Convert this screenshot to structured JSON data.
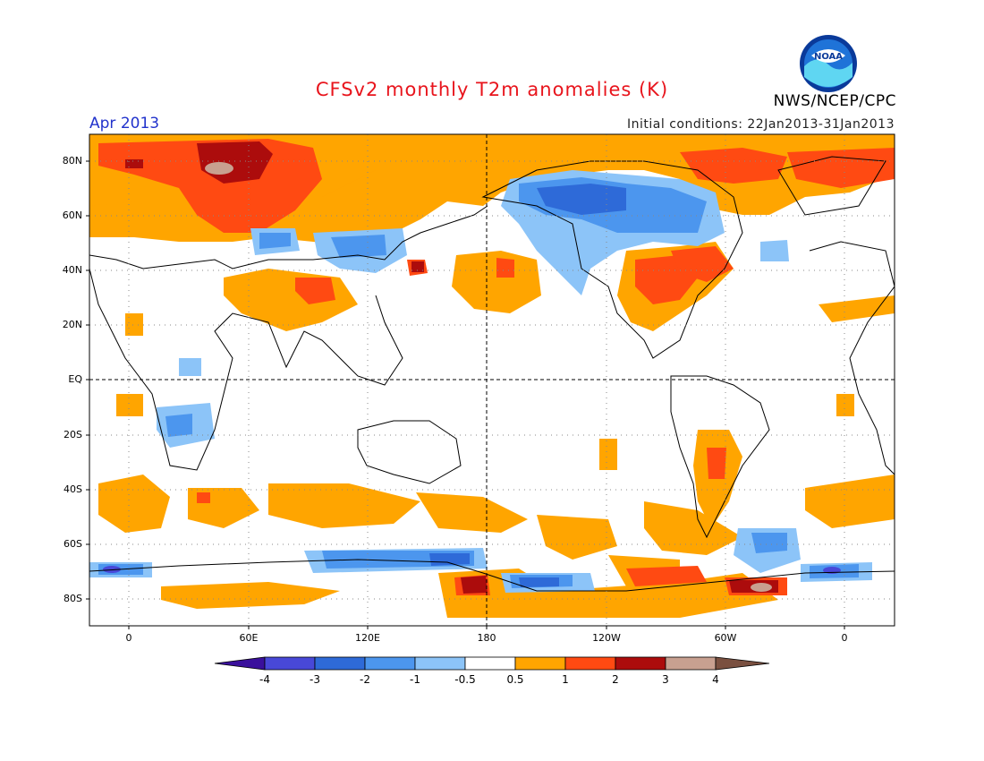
{
  "header": {
    "title": "CFSv2 monthly T2m anomalies (K)",
    "month": "Apr 2013",
    "initial_conditions": "Initial conditions: 22Jan2013-31Jan2013",
    "org": "NWS/NCEP/CPC",
    "logo_text": "NOAA"
  },
  "axes": {
    "lat_labels": [
      "80N",
      "60N",
      "40N",
      "20N",
      "EQ",
      "20S",
      "40S",
      "60S",
      "80S"
    ],
    "lon_labels": [
      "0",
      "60E",
      "120E",
      "180",
      "120W",
      "60W",
      "0"
    ]
  },
  "colorbar": {
    "labels": [
      "-4",
      "-3",
      "-2",
      "-1",
      "-0.5",
      "0.5",
      "1",
      "2",
      "3",
      "4"
    ],
    "colors": [
      "#3a109c",
      "#4848d8",
      "#2e6ad8",
      "#4c96ee",
      "#8cc4f8",
      "#ffffff",
      "#ffa500",
      "#ff4a12",
      "#ac0c0c",
      "#c8a090",
      "#7a5040"
    ]
  },
  "anomaly_colors": {
    "warm_light": "#ffa500",
    "warm_medium": "#ff4a12",
    "warm_strong": "#ac0c0c",
    "warm_extreme": "#c8a090",
    "cool_light": "#8cc4f8",
    "cool_medium": "#4c96ee",
    "cool_strong": "#2e6ad8",
    "cool_extreme": "#4848d8"
  }
}
